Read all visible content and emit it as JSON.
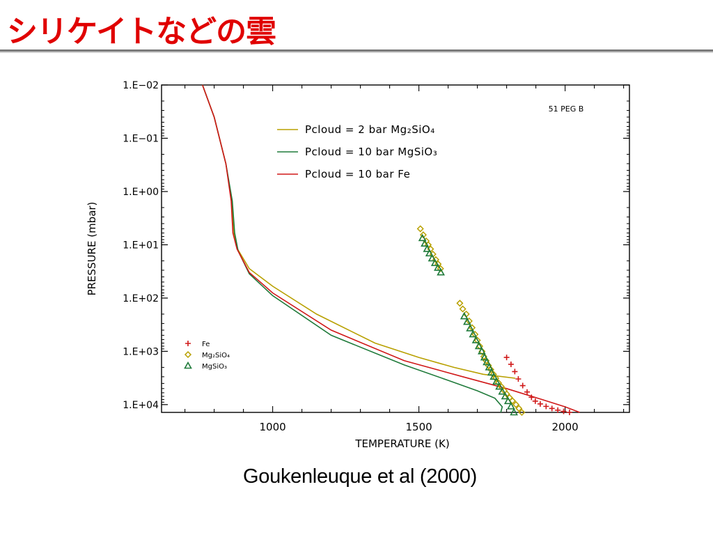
{
  "slide": {
    "title": "シリケイトなどの雲",
    "citation": "Goukenleuque et al (2000)"
  },
  "colors": {
    "title": "#e00000",
    "series_mg2sio4": "#b8a000",
    "series_mgsio3": "#1f7a3a",
    "series_fe": "#d01818",
    "axes": "#000000"
  },
  "chart_data": {
    "type": "line",
    "xlabel": "TEMPERATURE (K)",
    "ylabel": "PRESSURE (mbar)",
    "xlim": [
      620,
      2220
    ],
    "ylim": [
      0.01,
      14000
    ],
    "yscale": "log",
    "y_inverted": true,
    "x_ticks": [
      1000,
      1500,
      2000
    ],
    "x_tick_labels": [
      "1000",
      "1500",
      "2000"
    ],
    "y_ticks": [
      0.01,
      0.1,
      1,
      10,
      100,
      1000,
      10000
    ],
    "y_tick_labels": [
      "1.E−02",
      "1.E−01",
      "1.E+00",
      "1.E+01",
      "1.E+02",
      "1.E+03",
      "1.E+04"
    ],
    "annotation": "51 PEG B",
    "legend_lines": [
      {
        "label": "Pcloud = 2 bar Mg₂SiO₄",
        "color": "#b8a000"
      },
      {
        "label": "Pcloud = 10 bar MgSiO₃",
        "color": "#1f7a3a"
      },
      {
        "label": "Pcloud = 10 bar Fe",
        "color": "#d01818"
      }
    ],
    "legend_markers": [
      {
        "label": "Fe",
        "marker": "plus",
        "color": "#d01818"
      },
      {
        "label": "Mg₂SiO₄",
        "marker": "diamond",
        "color": "#b8a000"
      },
      {
        "label": "MgSiO₃",
        "marker": "triangle",
        "color": "#1f7a3a"
      }
    ],
    "series": [
      {
        "name": "Pcloud = 2 bar Mg₂SiO₄",
        "color": "#b8a000",
        "x": [
          760,
          800,
          840,
          860,
          868,
          880,
          920,
          1000,
          1150,
          1350,
          1500,
          1620,
          1720,
          1830
        ],
        "y": [
          0.01,
          0.04,
          0.3,
          1.5,
          6,
          12,
          28,
          60,
          200,
          700,
          1300,
          2000,
          2700,
          3200
        ]
      },
      {
        "name": "Pcloud = 10 bar MgSiO₃",
        "color": "#1f7a3a",
        "x": [
          760,
          800,
          840,
          862,
          870,
          882,
          920,
          1000,
          1200,
          1450,
          1600,
          1700,
          1760,
          1785,
          1780
        ],
        "y": [
          0.01,
          0.04,
          0.3,
          1.5,
          6,
          13,
          35,
          90,
          500,
          1800,
          3500,
          5500,
          7600,
          11000,
          14000
        ]
      },
      {
        "name": "Pcloud = 10 bar Fe",
        "color": "#d01818",
        "x": [
          760,
          800,
          840,
          858,
          864,
          878,
          920,
          1000,
          1200,
          1450,
          1650,
          1800,
          1920,
          2000,
          2050
        ],
        "y": [
          0.01,
          0.04,
          0.3,
          1.5,
          6,
          12,
          33,
          80,
          400,
          1500,
          3000,
          5000,
          8000,
          11000,
          14000
        ]
      }
    ],
    "condensation_points": [
      {
        "name": "Fe",
        "marker": "plus",
        "color": "#d01818",
        "x": [
          1800,
          1815,
          1828,
          1840,
          1855,
          1870,
          1885,
          1898,
          1915,
          1935,
          1955,
          1975,
          1995,
          2015
        ],
        "y": [
          1300,
          1750,
          2400,
          3300,
          4400,
          5800,
          7300,
          8600,
          9700,
          10800,
          11800,
          12700,
          13400,
          14000
        ]
      },
      {
        "name": "Mg₂SiO₄",
        "marker": "diamond",
        "color": "#b8a000",
        "x": [
          1505,
          1515,
          1525,
          1532,
          1540,
          1548,
          1558,
          1566,
          1574,
          1640,
          1650,
          1662,
          1672,
          1682,
          1692,
          1700,
          1708,
          1716,
          1722,
          1730,
          1738,
          1746,
          1755,
          1763,
          1772,
          1782,
          1792,
          1800,
          1810,
          1820,
          1832,
          1842,
          1852
        ],
        "y": [
          5,
          6.5,
          8.5,
          10,
          12,
          15,
          19,
          23,
          28,
          125,
          160,
          200,
          270,
          360,
          480,
          620,
          800,
          1000,
          1250,
          1500,
          1850,
          2200,
          2700,
          3200,
          3900,
          4600,
          5500,
          6300,
          7400,
          8500,
          10000,
          11800,
          14000
        ]
      },
      {
        "name": "MgSiO₃",
        "marker": "triangle",
        "color": "#1f7a3a",
        "x": [
          1512,
          1520,
          1528,
          1536,
          1545,
          1555,
          1565,
          1575,
          1655,
          1665,
          1675,
          1685,
          1695,
          1705,
          1715,
          1724,
          1732,
          1740,
          1748,
          1756,
          1765,
          1775,
          1785,
          1795,
          1805,
          1815,
          1825
        ],
        "y": [
          7.5,
          9.5,
          12,
          14.5,
          18,
          22,
          27,
          33,
          220,
          280,
          370,
          480,
          620,
          800,
          1000,
          1300,
          1600,
          2000,
          2500,
          3000,
          3700,
          4600,
          5700,
          7000,
          8600,
          10800,
          14000
        ]
      }
    ]
  }
}
